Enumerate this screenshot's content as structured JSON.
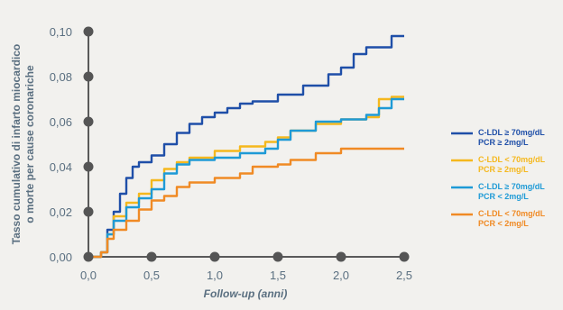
{
  "chart_data": {
    "type": "line",
    "title": "",
    "xlabel": "Follow-up (anni)",
    "ylabel_line1": "Tasso cumulativo di infarto miocardico",
    "ylabel_line2": "o morte per cause coronariche",
    "xlim": [
      0,
      2.5
    ],
    "ylim": [
      0,
      0.1
    ],
    "x_ticks": [
      0,
      0.5,
      1.0,
      1.5,
      2.0,
      2.5
    ],
    "x_tick_labels": [
      "0,0",
      "0,5",
      "1,0",
      "1,5",
      "2,0",
      "2,5"
    ],
    "y_ticks": [
      0,
      0.02,
      0.04,
      0.06,
      0.08,
      0.1
    ],
    "y_tick_labels": [
      "0,00",
      "0,02",
      "0,04",
      "0,06",
      "0,08",
      "0,10"
    ],
    "grid": false,
    "legend_position": "right",
    "series": [
      {
        "label_line1": "C-LDL ≥ 70mg/dL",
        "label_line2": "PCR ≥ 2mg/L",
        "color": "#1f4fa8",
        "x": [
          0,
          0.1,
          0.15,
          0.2,
          0.25,
          0.3,
          0.35,
          0.4,
          0.5,
          0.6,
          0.7,
          0.8,
          0.9,
          1.0,
          1.1,
          1.2,
          1.3,
          1.5,
          1.7,
          1.9,
          2.0,
          2.1,
          2.2,
          2.3,
          2.4,
          2.5
        ],
        "y": [
          0,
          0.002,
          0.012,
          0.02,
          0.028,
          0.035,
          0.04,
          0.042,
          0.045,
          0.05,
          0.055,
          0.059,
          0.062,
          0.064,
          0.066,
          0.068,
          0.069,
          0.072,
          0.076,
          0.081,
          0.084,
          0.09,
          0.093,
          0.093,
          0.098,
          0.098
        ]
      },
      {
        "label_line1": "C-LDL < 70mg/dL",
        "label_line2": "PCR ≥ 2mg/L",
        "color": "#f5b81d",
        "x": [
          0,
          0.1,
          0.15,
          0.2,
          0.3,
          0.4,
          0.5,
          0.6,
          0.7,
          0.8,
          1.0,
          1.2,
          1.4,
          1.5,
          1.6,
          1.8,
          2.0,
          2.2,
          2.3,
          2.4,
          2.5
        ],
        "y": [
          0,
          0.002,
          0.01,
          0.018,
          0.024,
          0.028,
          0.034,
          0.039,
          0.042,
          0.044,
          0.047,
          0.049,
          0.051,
          0.053,
          0.056,
          0.059,
          0.061,
          0.062,
          0.07,
          0.071,
          0.071
        ]
      },
      {
        "label_line1": "C-LDL ≥ 70mg/dL",
        "label_line2": "PCR < 2mg/L",
        "color": "#1e9ad6",
        "x": [
          0,
          0.1,
          0.15,
          0.2,
          0.3,
          0.4,
          0.5,
          0.6,
          0.7,
          0.8,
          1.0,
          1.2,
          1.4,
          1.5,
          1.6,
          1.8,
          2.0,
          2.2,
          2.3,
          2.4,
          2.5
        ],
        "y": [
          0,
          0.002,
          0.01,
          0.016,
          0.022,
          0.026,
          0.03,
          0.037,
          0.041,
          0.043,
          0.044,
          0.046,
          0.048,
          0.052,
          0.056,
          0.06,
          0.061,
          0.063,
          0.066,
          0.07,
          0.07
        ]
      },
      {
        "label_line1": "C-LDL < 70mg/dL",
        "label_line2": "PCR < 2mg/L",
        "color": "#f08a24",
        "x": [
          0,
          0.1,
          0.15,
          0.2,
          0.3,
          0.4,
          0.5,
          0.6,
          0.7,
          0.8,
          1.0,
          1.2,
          1.3,
          1.5,
          1.6,
          1.8,
          2.0,
          2.2,
          2.5
        ],
        "y": [
          0,
          0.002,
          0.008,
          0.012,
          0.016,
          0.021,
          0.025,
          0.027,
          0.031,
          0.033,
          0.035,
          0.037,
          0.04,
          0.041,
          0.043,
          0.046,
          0.048,
          0.048,
          0.048
        ]
      }
    ]
  }
}
